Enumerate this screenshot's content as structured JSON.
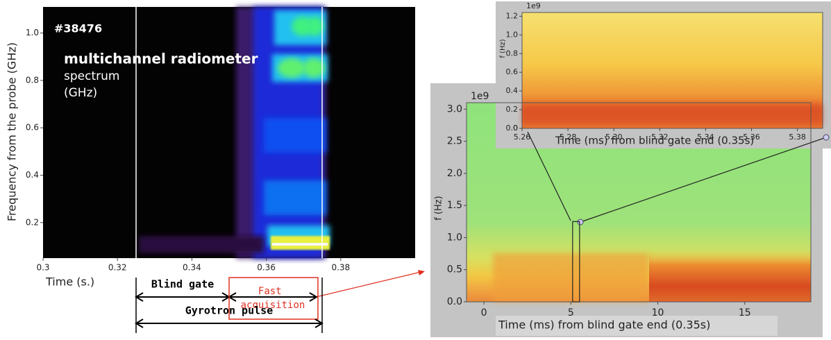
{
  "chart_data": [
    {
      "type": "spectrogram",
      "annotation": "#38476",
      "title": "multichannel radiometer",
      "subtitle_lines": [
        "spectrum",
        "(GHz)"
      ],
      "y_label": "Frequency from the probe (GHz)",
      "x_label": "Time (s.)",
      "xlim": [
        0.3,
        0.4
      ],
      "xticks": [
        0.3,
        0.32,
        0.34,
        0.36,
        0.38
      ],
      "ylim": [
        0.05,
        1.11
      ],
      "yticks": [
        0.2,
        0.4,
        0.6,
        0.8,
        {
          "value": 1,
          "label": "1.0"
        }
      ],
      "vlines": [
        0.325,
        0.375
      ],
      "spans": [
        {
          "label": "Blind gate",
          "from": 0.325,
          "to": 0.35
        },
        {
          "label": "Fast acquisition",
          "from": 0.35,
          "to": 0.3735
        },
        {
          "label": "Gyrotron pulse",
          "from": 0.325,
          "to": 0.375
        }
      ]
    },
    {
      "type": "spectrogram",
      "offset_label": "1e9",
      "y_label": "f (Hz)",
      "x_label": "Time (ms) from blind gate end (0.35s)",
      "xlim": [
        -1,
        18.8
      ],
      "xticks": [
        0,
        5,
        10,
        15
      ],
      "ylim": [
        0,
        3.1
      ],
      "yticks": [
        {
          "value": 0,
          "label": "0.0"
        },
        0.5,
        {
          "value": 1,
          "label": "1.0"
        },
        1.5,
        {
          "value": 2,
          "label": "2.0"
        },
        2.5,
        {
          "value": 3,
          "label": "3.0"
        }
      ],
      "zoom_box": {
        "x": [
          5.1,
          5.5
        ],
        "y": [
          0,
          1.25
        ]
      }
    },
    {
      "type": "spectrogram",
      "offset_label": "1e9",
      "y_label": "f (Hz)",
      "x_label": "Time (ms) from blind gate end (0.35s)",
      "xlim": [
        5.26,
        5.391
      ],
      "xticks": [
        5.26,
        5.28,
        {
          "value": 5.3,
          "label": "5.30"
        },
        5.32,
        5.34,
        5.36,
        5.38
      ],
      "ylim": [
        0,
        1.24
      ],
      "yticks": [
        {
          "value": 0,
          "label": "0.0"
        },
        0.2,
        0.4,
        0.6,
        0.8,
        {
          "value": 1,
          "label": "1.0"
        },
        0.0,
        {
          "value": 1.2,
          "label": "1.2"
        }
      ]
    }
  ]
}
